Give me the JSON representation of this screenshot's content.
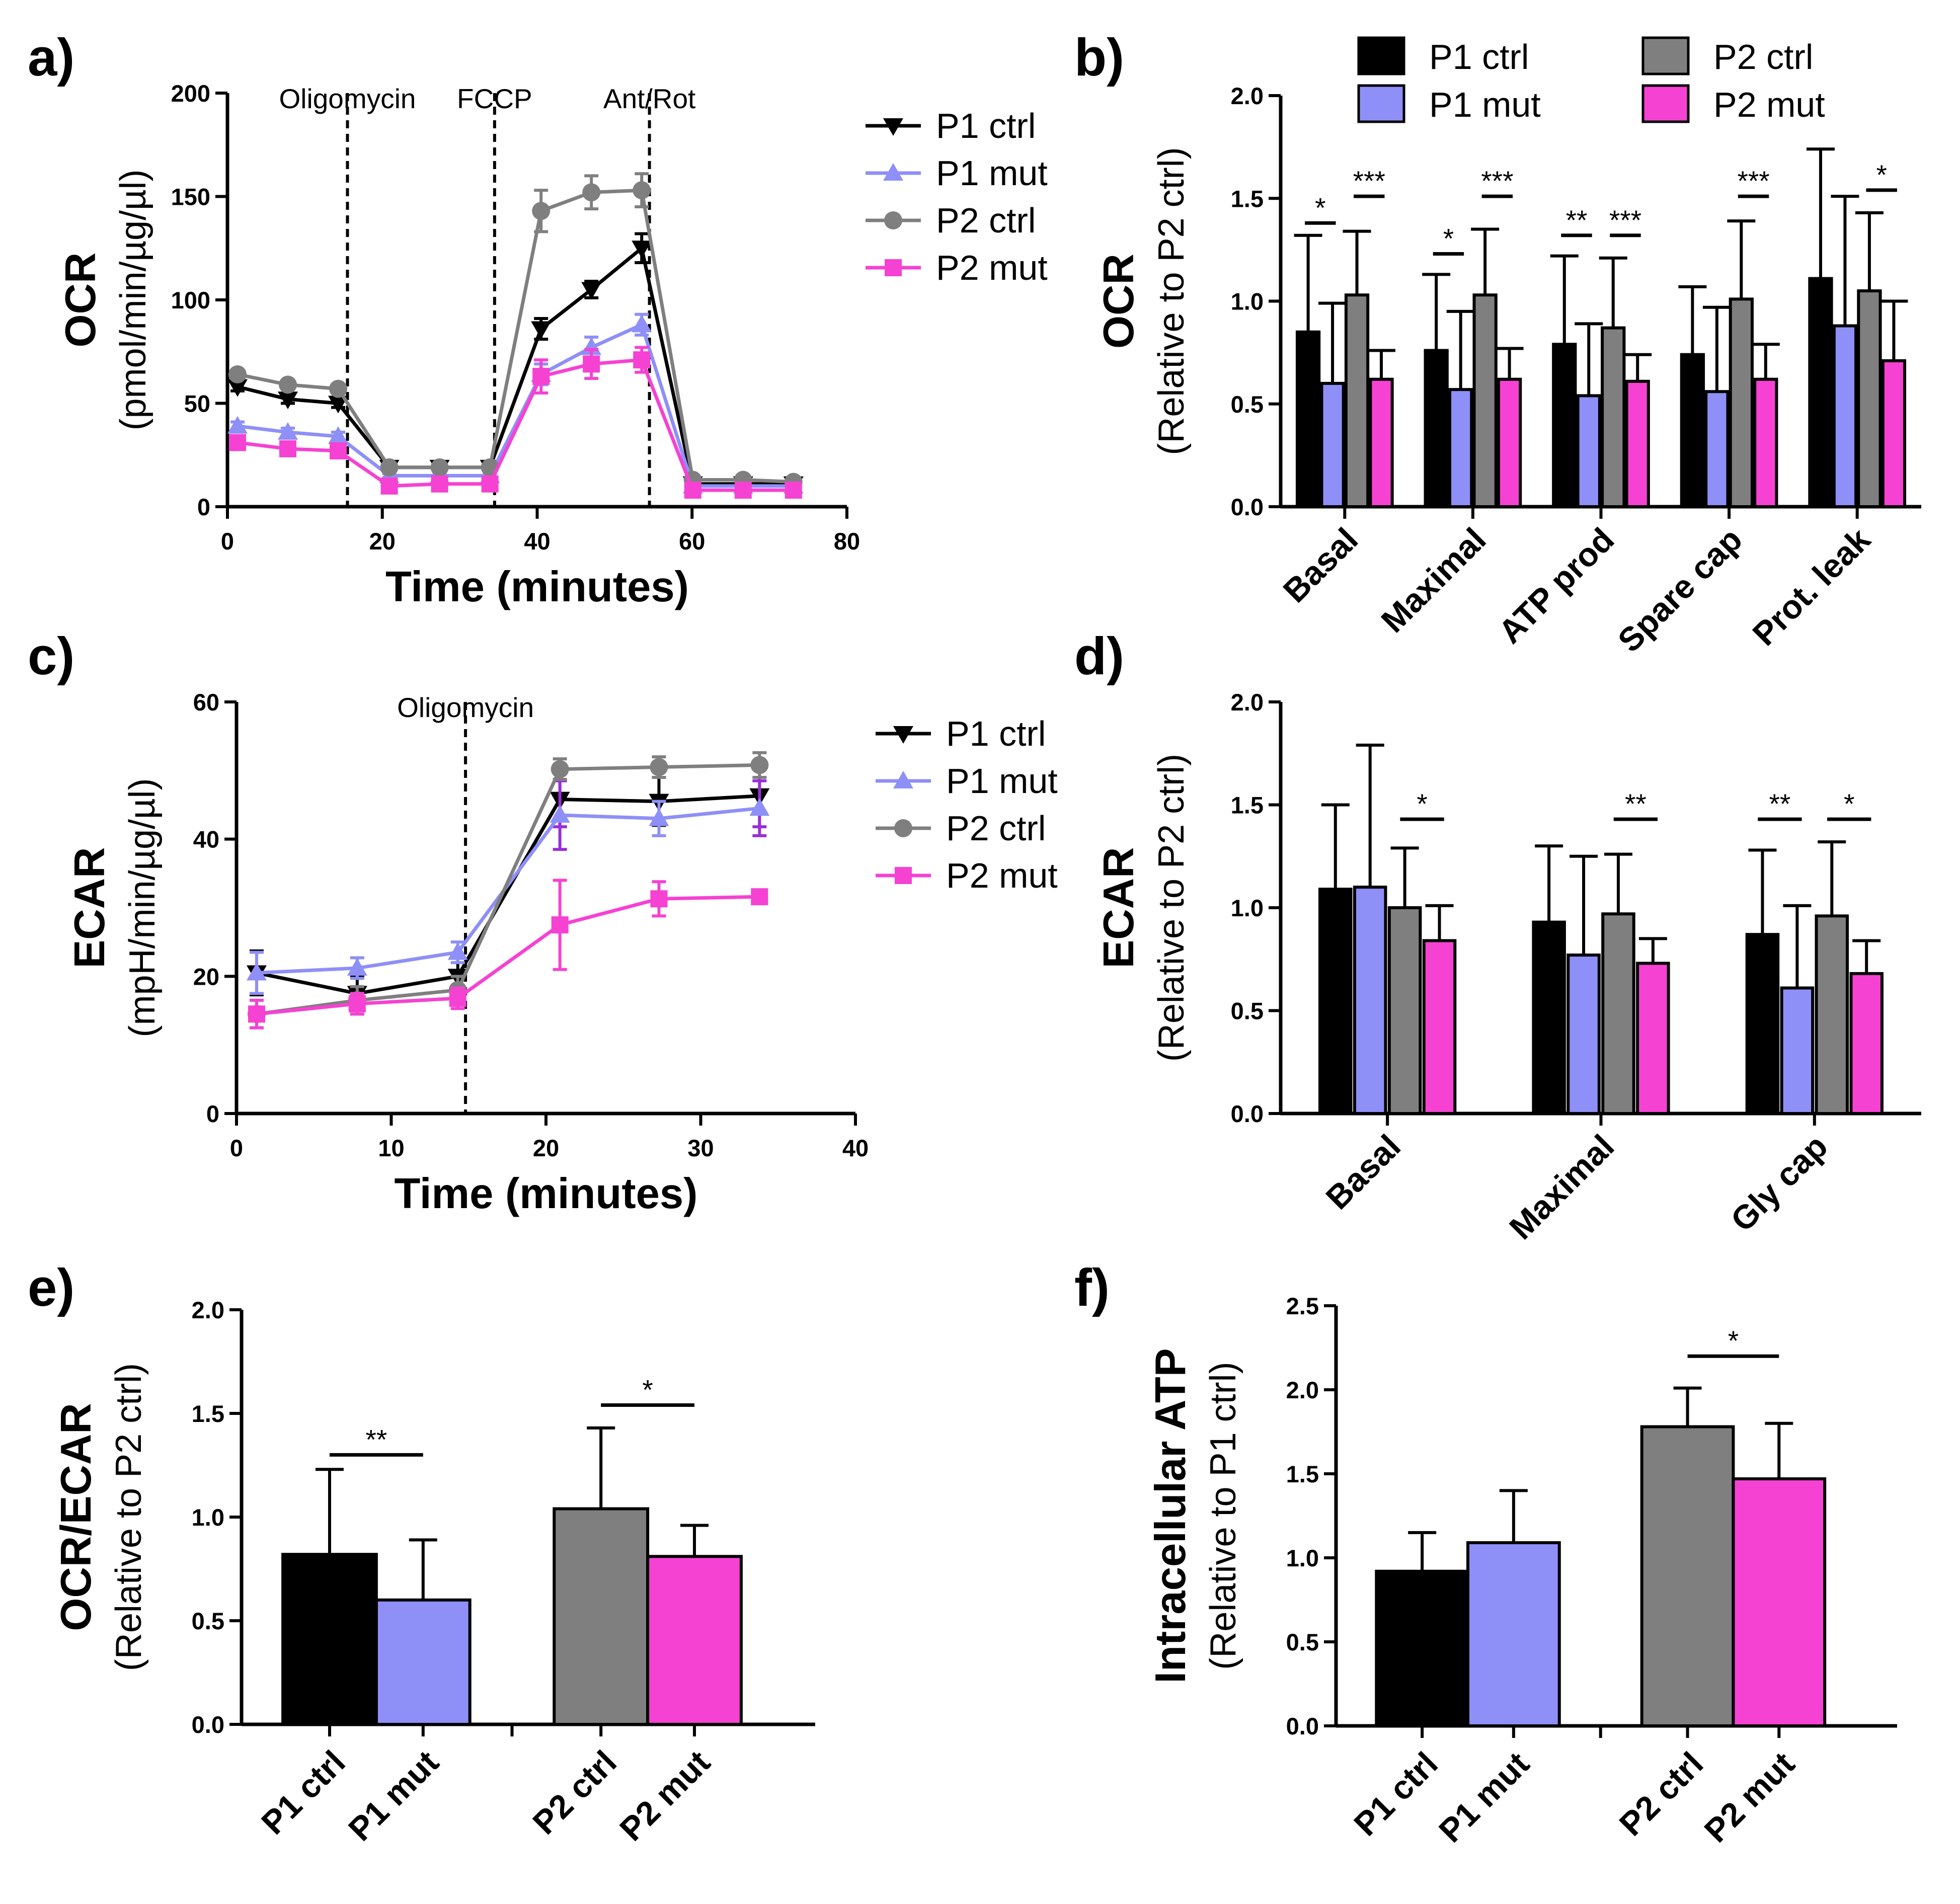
{
  "colors": {
    "P1 ctrl": "#000000",
    "P1 mut": "#8e8ff7",
    "P2 ctrl": "#7f7f7f",
    "P2 mut": "#f542d2",
    "error_purple": "#9a2fd6",
    "axis": "#000000"
  },
  "chart_data": [
    {
      "panel": "a)",
      "type": "line",
      "ylabel": "OCR",
      "ylabel_sub": "(pmol/min/µg/µl)",
      "xlabel": "Time (minutes)",
      "xlim": [
        0,
        80
      ],
      "ylim": [
        0,
        200
      ],
      "xticks": [
        0,
        20,
        40,
        60,
        80
      ],
      "yticks": [
        0,
        50,
        100,
        150,
        200
      ],
      "annotations": [
        {
          "x": 15.5,
          "label": "Oligomycin"
        },
        {
          "x": 34.5,
          "label": "FCCP"
        },
        {
          "x": 54.5,
          "label": "Ant/Rot"
        }
      ],
      "x": [
        1.3,
        7.8,
        14.3,
        20.9,
        27.4,
        33.9,
        40.5,
        47.0,
        53.5,
        60.1,
        66.6,
        73.1
      ],
      "series": [
        {
          "name": "P1 ctrl",
          "marker": "tri-down",
          "values": [
            58,
            52,
            50,
            19,
            19,
            19,
            86,
            105,
            125,
            11,
            11,
            11
          ],
          "errors": [
            2,
            2,
            2,
            1,
            1,
            1,
            5,
            4,
            7,
            1,
            1,
            1
          ]
        },
        {
          "name": "P1 mut",
          "marker": "tri-up",
          "values": [
            39,
            36,
            34,
            15,
            15,
            15,
            64,
            77,
            88,
            10,
            10,
            10
          ],
          "errors": [
            2,
            2,
            2,
            1,
            1,
            1,
            5,
            5,
            5,
            1,
            1,
            1
          ]
        },
        {
          "name": "P2 ctrl",
          "marker": "circle",
          "values": [
            64,
            59,
            57,
            19,
            19,
            19,
            143,
            152,
            153,
            13,
            13,
            12
          ],
          "errors": [
            2,
            2,
            2,
            1,
            1,
            1,
            10,
            8,
            8,
            1,
            1,
            1
          ]
        },
        {
          "name": "P2 mut",
          "marker": "square",
          "values": [
            31,
            28,
            27,
            10,
            11,
            11,
            63,
            69,
            71,
            8,
            8,
            8
          ],
          "errors": [
            3,
            3,
            3,
            2,
            2,
            2,
            8,
            7,
            6,
            1,
            1,
            1
          ]
        }
      ],
      "legend": [
        "P1 ctrl",
        "P1 mut",
        "P2 ctrl",
        "P2 mut"
      ]
    },
    {
      "panel": "b)",
      "type": "bar",
      "ylabel": "OCR",
      "ylabel_sub": "(Relative to P2 ctrl)",
      "ylim": [
        0,
        2.0
      ],
      "yticks": [
        "0.0",
        "0.5",
        "1.0",
        "1.5",
        "2.0"
      ],
      "categories": [
        "Basal",
        "Maximal",
        "ATP prod",
        "Spare cap",
        "Prot. leak"
      ],
      "series": [
        {
          "name": "P1 ctrl",
          "values": [
            0.85,
            0.76,
            0.79,
            0.74,
            1.11
          ],
          "errors": [
            0.47,
            0.37,
            0.43,
            0.33,
            0.63
          ]
        },
        {
          "name": "P1 mut",
          "values": [
            0.6,
            0.57,
            0.54,
            0.56,
            0.88
          ],
          "errors": [
            0.39,
            0.38,
            0.35,
            0.41,
            0.63
          ]
        },
        {
          "name": "P2 ctrl",
          "values": [
            1.03,
            1.03,
            0.87,
            1.01,
            1.05
          ],
          "errors": [
            0.31,
            0.32,
            0.34,
            0.38,
            0.38
          ]
        },
        {
          "name": "P2 mut",
          "values": [
            0.62,
            0.62,
            0.61,
            0.62,
            0.71
          ],
          "errors": [
            0.14,
            0.15,
            0.13,
            0.17,
            0.29
          ]
        }
      ],
      "significance": [
        {
          "category": "Basal",
          "from": "P1 ctrl",
          "to": "P1 mut",
          "y": 1.38,
          "label": "*"
        },
        {
          "category": "Basal",
          "from": "P2 ctrl",
          "to": "P2 mut",
          "y": 1.51,
          "label": "***"
        },
        {
          "category": "Maximal",
          "from": "P1 ctrl",
          "to": "P1 mut",
          "y": 1.23,
          "label": "*"
        },
        {
          "category": "Maximal",
          "from": "P2 ctrl",
          "to": "P2 mut",
          "y": 1.51,
          "label": "***"
        },
        {
          "category": "ATP prod",
          "from": "P1 ctrl",
          "to": "P1 mut",
          "y": 1.32,
          "label": "**"
        },
        {
          "category": "ATP prod",
          "from": "P2 ctrl",
          "to": "P2 mut",
          "y": 1.32,
          "label": "***"
        },
        {
          "category": "Spare cap",
          "from": "P2 ctrl",
          "to": "P2 mut",
          "y": 1.51,
          "label": "***"
        },
        {
          "category": "Prot. leak",
          "from": "P2 ctrl",
          "to": "P2 mut",
          "y": 1.54,
          "label": "*"
        }
      ],
      "legend": [
        "P1 ctrl",
        "P1 mut",
        "P2 ctrl",
        "P2 mut"
      ]
    },
    {
      "panel": "c)",
      "type": "line",
      "ylabel": "ECAR",
      "ylabel_sub": "(mpH/min/µg/µl)",
      "xlabel": "Time (minutes)",
      "xlim": [
        0,
        40
      ],
      "ylim": [
        0,
        60
      ],
      "xticks": [
        0,
        10,
        20,
        30,
        40
      ],
      "yticks": [
        0,
        20,
        40,
        60
      ],
      "annotations": [
        {
          "x": 14.8,
          "label": "Oligomycin"
        }
      ],
      "x": [
        1.3,
        7.8,
        14.3,
        20.9,
        27.3,
        33.8
      ],
      "series": [
        {
          "name": "P1 ctrl",
          "marker": "tri-down",
          "values": [
            20.5,
            17.5,
            20.0,
            45.8,
            45.5,
            46.3
          ],
          "errors": [
            3.2,
            2.5,
            3.0,
            4.0,
            3.5,
            4.5
          ]
        },
        {
          "name": "P1 mut",
          "marker": "tri-up",
          "values": [
            20.5,
            21.2,
            23.5,
            43.5,
            43.0,
            44.5
          ],
          "errors": [
            3.0,
            1.5,
            1.5,
            5.0,
            2.5,
            4.0
          ]
        },
        {
          "name": "P2 ctrl",
          "marker": "circle",
          "values": [
            14.5,
            16.5,
            18.0,
            50.2,
            50.5,
            50.8
          ],
          "errors": [
            2.0,
            2.0,
            2.0,
            1.5,
            1.5,
            1.8
          ]
        },
        {
          "name": "P2 mut",
          "marker": "square",
          "values": [
            14.5,
            16.0,
            16.8,
            27.5,
            31.3,
            31.6
          ],
          "errors": [
            2.0,
            1.5,
            1.5,
            6.5,
            2.5,
            0.5
          ]
        }
      ],
      "legend": [
        "P1 ctrl",
        "P1 mut",
        "P2 ctrl",
        "P2 mut"
      ]
    },
    {
      "panel": "d)",
      "type": "bar",
      "ylabel": "ECAR",
      "ylabel_sub": "(Relative to P2 ctrl)",
      "ylim": [
        0,
        2.0
      ],
      "yticks": [
        "0.0",
        "0.5",
        "1.0",
        "1.5",
        "2.0"
      ],
      "categories": [
        "Basal",
        "Maximal",
        "Gly cap"
      ],
      "series": [
        {
          "name": "P1 ctrl",
          "values": [
            1.09,
            0.93,
            0.87
          ],
          "errors": [
            0.41,
            0.37,
            0.41
          ]
        },
        {
          "name": "P1 mut",
          "values": [
            1.1,
            0.77,
            0.61
          ],
          "errors": [
            0.69,
            0.48,
            0.4
          ]
        },
        {
          "name": "P2 ctrl",
          "values": [
            1.0,
            0.97,
            0.96
          ],
          "errors": [
            0.29,
            0.29,
            0.36
          ]
        },
        {
          "name": "P2 mut",
          "values": [
            0.84,
            0.73,
            0.68
          ],
          "errors": [
            0.17,
            0.12,
            0.16
          ]
        }
      ],
      "significance": [
        {
          "category": "Basal",
          "from": "P2 ctrl",
          "to": "P2 mut",
          "y": 1.43,
          "label": "*"
        },
        {
          "category": "Maximal",
          "from": "P2 ctrl",
          "to": "P2 mut",
          "y": 1.43,
          "label": "**"
        },
        {
          "category": "Gly cap",
          "from": "P1 ctrl",
          "to": "P1 mut",
          "y": 1.43,
          "label": "**"
        },
        {
          "category": "Gly cap",
          "from": "P2 ctrl",
          "to": "P2 mut",
          "y": 1.43,
          "label": "*"
        }
      ]
    },
    {
      "panel": "e)",
      "type": "bar",
      "ylabel": "OCR/ECAR",
      "ylabel_sub": "(Relative to P2 ctrl)",
      "ylim": [
        0,
        2.0
      ],
      "yticks": [
        "0.0",
        "0.5",
        "1.0",
        "1.5",
        "2.0"
      ],
      "groups": [
        {
          "bars": [
            {
              "name": "P1 ctrl",
              "value": 0.82,
              "error": 0.41
            },
            {
              "name": "P1 mut",
              "value": 0.6,
              "error": 0.29
            }
          ]
        },
        {
          "bars": [
            {
              "name": "P2 ctrl",
              "value": 1.04,
              "error": 0.39
            },
            {
              "name": "P2 mut",
              "value": 0.81,
              "error": 0.15
            }
          ]
        }
      ],
      "significance": [
        {
          "group": 0,
          "y": 1.3,
          "label": "**"
        },
        {
          "group": 1,
          "y": 1.54,
          "label": "*"
        }
      ]
    },
    {
      "panel": "f)",
      "type": "bar",
      "ylabel": "Intracellular ATP",
      "ylabel_sub": "(Relative to P1 ctrl)",
      "ylim": [
        0,
        2.5
      ],
      "yticks": [
        "0.0",
        "0.5",
        "1.0",
        "1.5",
        "2.0",
        "2.5"
      ],
      "groups": [
        {
          "bars": [
            {
              "name": "P1 ctrl",
              "value": 0.92,
              "error": 0.23
            },
            {
              "name": "P1 mut",
              "value": 1.09,
              "error": 0.31
            }
          ]
        },
        {
          "bars": [
            {
              "name": "P2 ctrl",
              "value": 1.78,
              "error": 0.23
            },
            {
              "name": "P2 mut",
              "value": 1.47,
              "error": 0.33
            }
          ]
        }
      ],
      "significance": [
        {
          "group": 1,
          "y": 2.2,
          "label": "*"
        }
      ]
    }
  ]
}
